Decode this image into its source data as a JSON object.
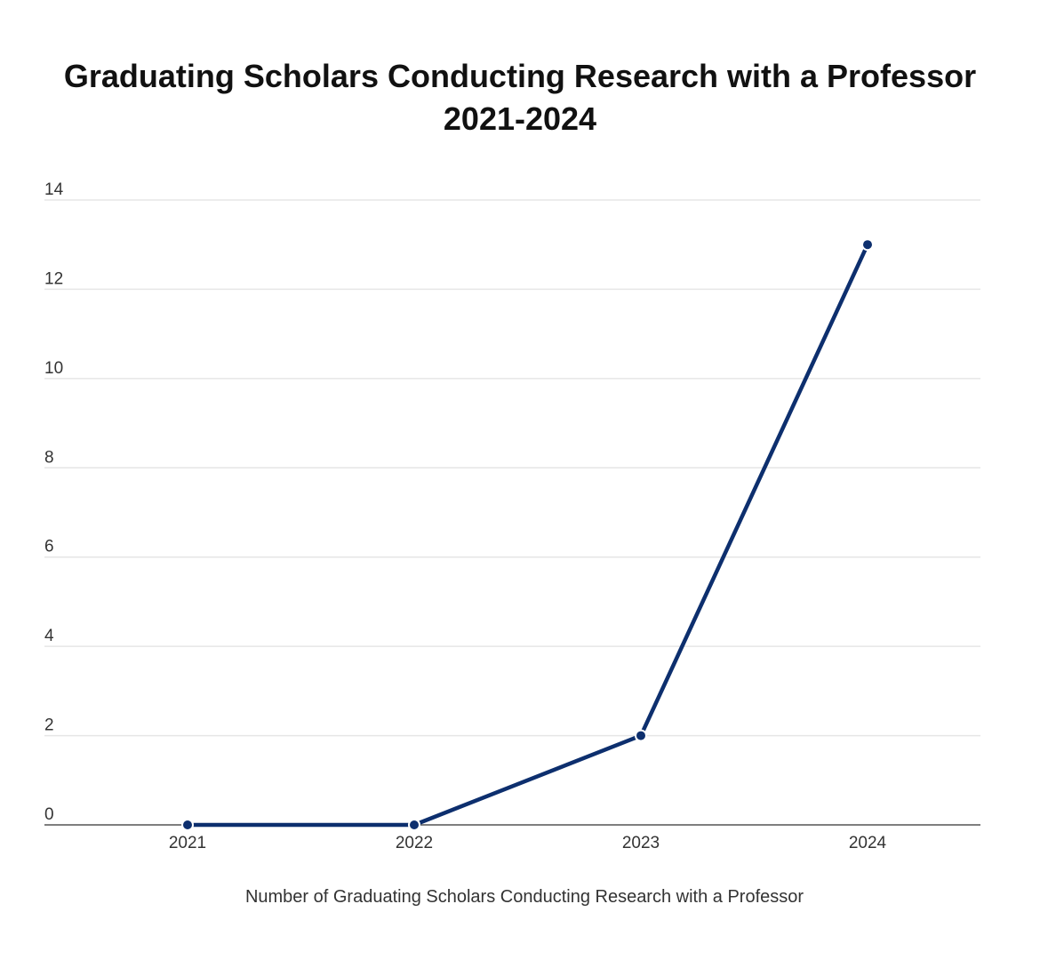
{
  "chart_data": {
    "type": "line",
    "title": "Graduating Scholars Conducting Research with a Professor",
    "subtitle": "2021-2024",
    "categories": [
      "2021",
      "2022",
      "2023",
      "2024"
    ],
    "series": [
      {
        "name": "Number of Graduating Scholars Conducting Research with a Professor",
        "values": [
          0,
          0,
          2,
          13
        ],
        "color": "#0d2f6e"
      }
    ],
    "y_ticks": [
      "0",
      "2",
      "4",
      "6",
      "8",
      "10",
      "12",
      "14"
    ],
    "ylim": [
      0,
      14
    ],
    "xlabel": "",
    "ylabel": "",
    "grid": true,
    "legend_position": "bottom",
    "colors": {
      "line": "#0d2f6e",
      "grid": "#e6e6e6",
      "axis": "#555555"
    }
  }
}
